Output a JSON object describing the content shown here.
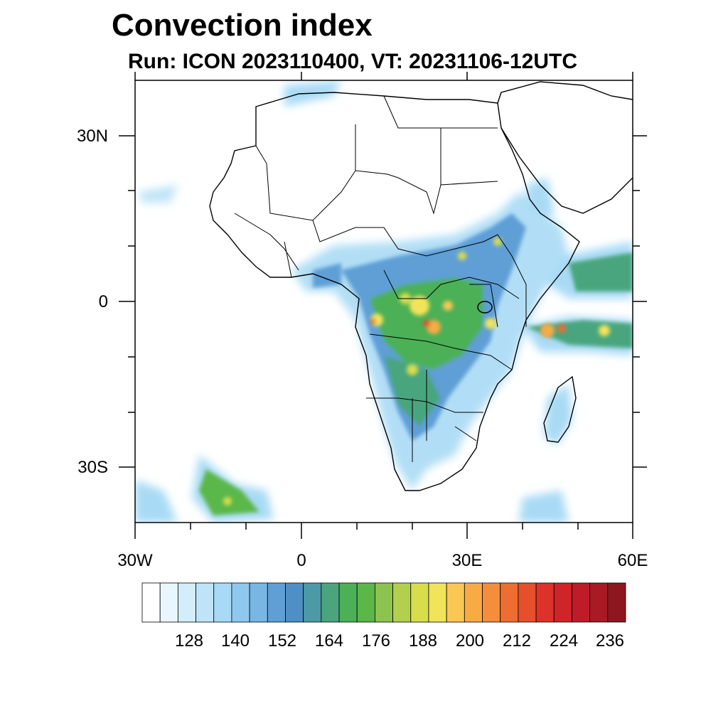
{
  "title": "Convection index",
  "subtitle": "Run: ICON 2023110400,  VT: 20231106-12UTC",
  "map": {
    "region": "Africa",
    "lon_range": [
      -30,
      60
    ],
    "lat_range": [
      -40,
      40
    ],
    "y_ticks": [
      "30N",
      "0",
      "30S"
    ],
    "x_ticks": [
      "30W",
      "0",
      "30E",
      "60E"
    ]
  },
  "colorbar": {
    "labels": [
      "128",
      "140",
      "152",
      "164",
      "176",
      "188",
      "200",
      "212",
      "224",
      "236"
    ],
    "colors": [
      "#ffffff",
      "#eaf6fd",
      "#d3edfa",
      "#bfe4f8",
      "#a8daf5",
      "#8ec8ee",
      "#78b6e4",
      "#5f9fd6",
      "#4e8fc6",
      "#4b9aa6",
      "#4aa57e",
      "#4bb056",
      "#5ab748",
      "#8cc44f",
      "#b3cf4e",
      "#d8dd4e",
      "#f2e45a",
      "#f9c852",
      "#f8ab45",
      "#f48d3c",
      "#ee6d31",
      "#e54f2b",
      "#dc3229",
      "#cf2429",
      "#bd1c28",
      "#a91a24",
      "#8e171f"
    ]
  }
}
